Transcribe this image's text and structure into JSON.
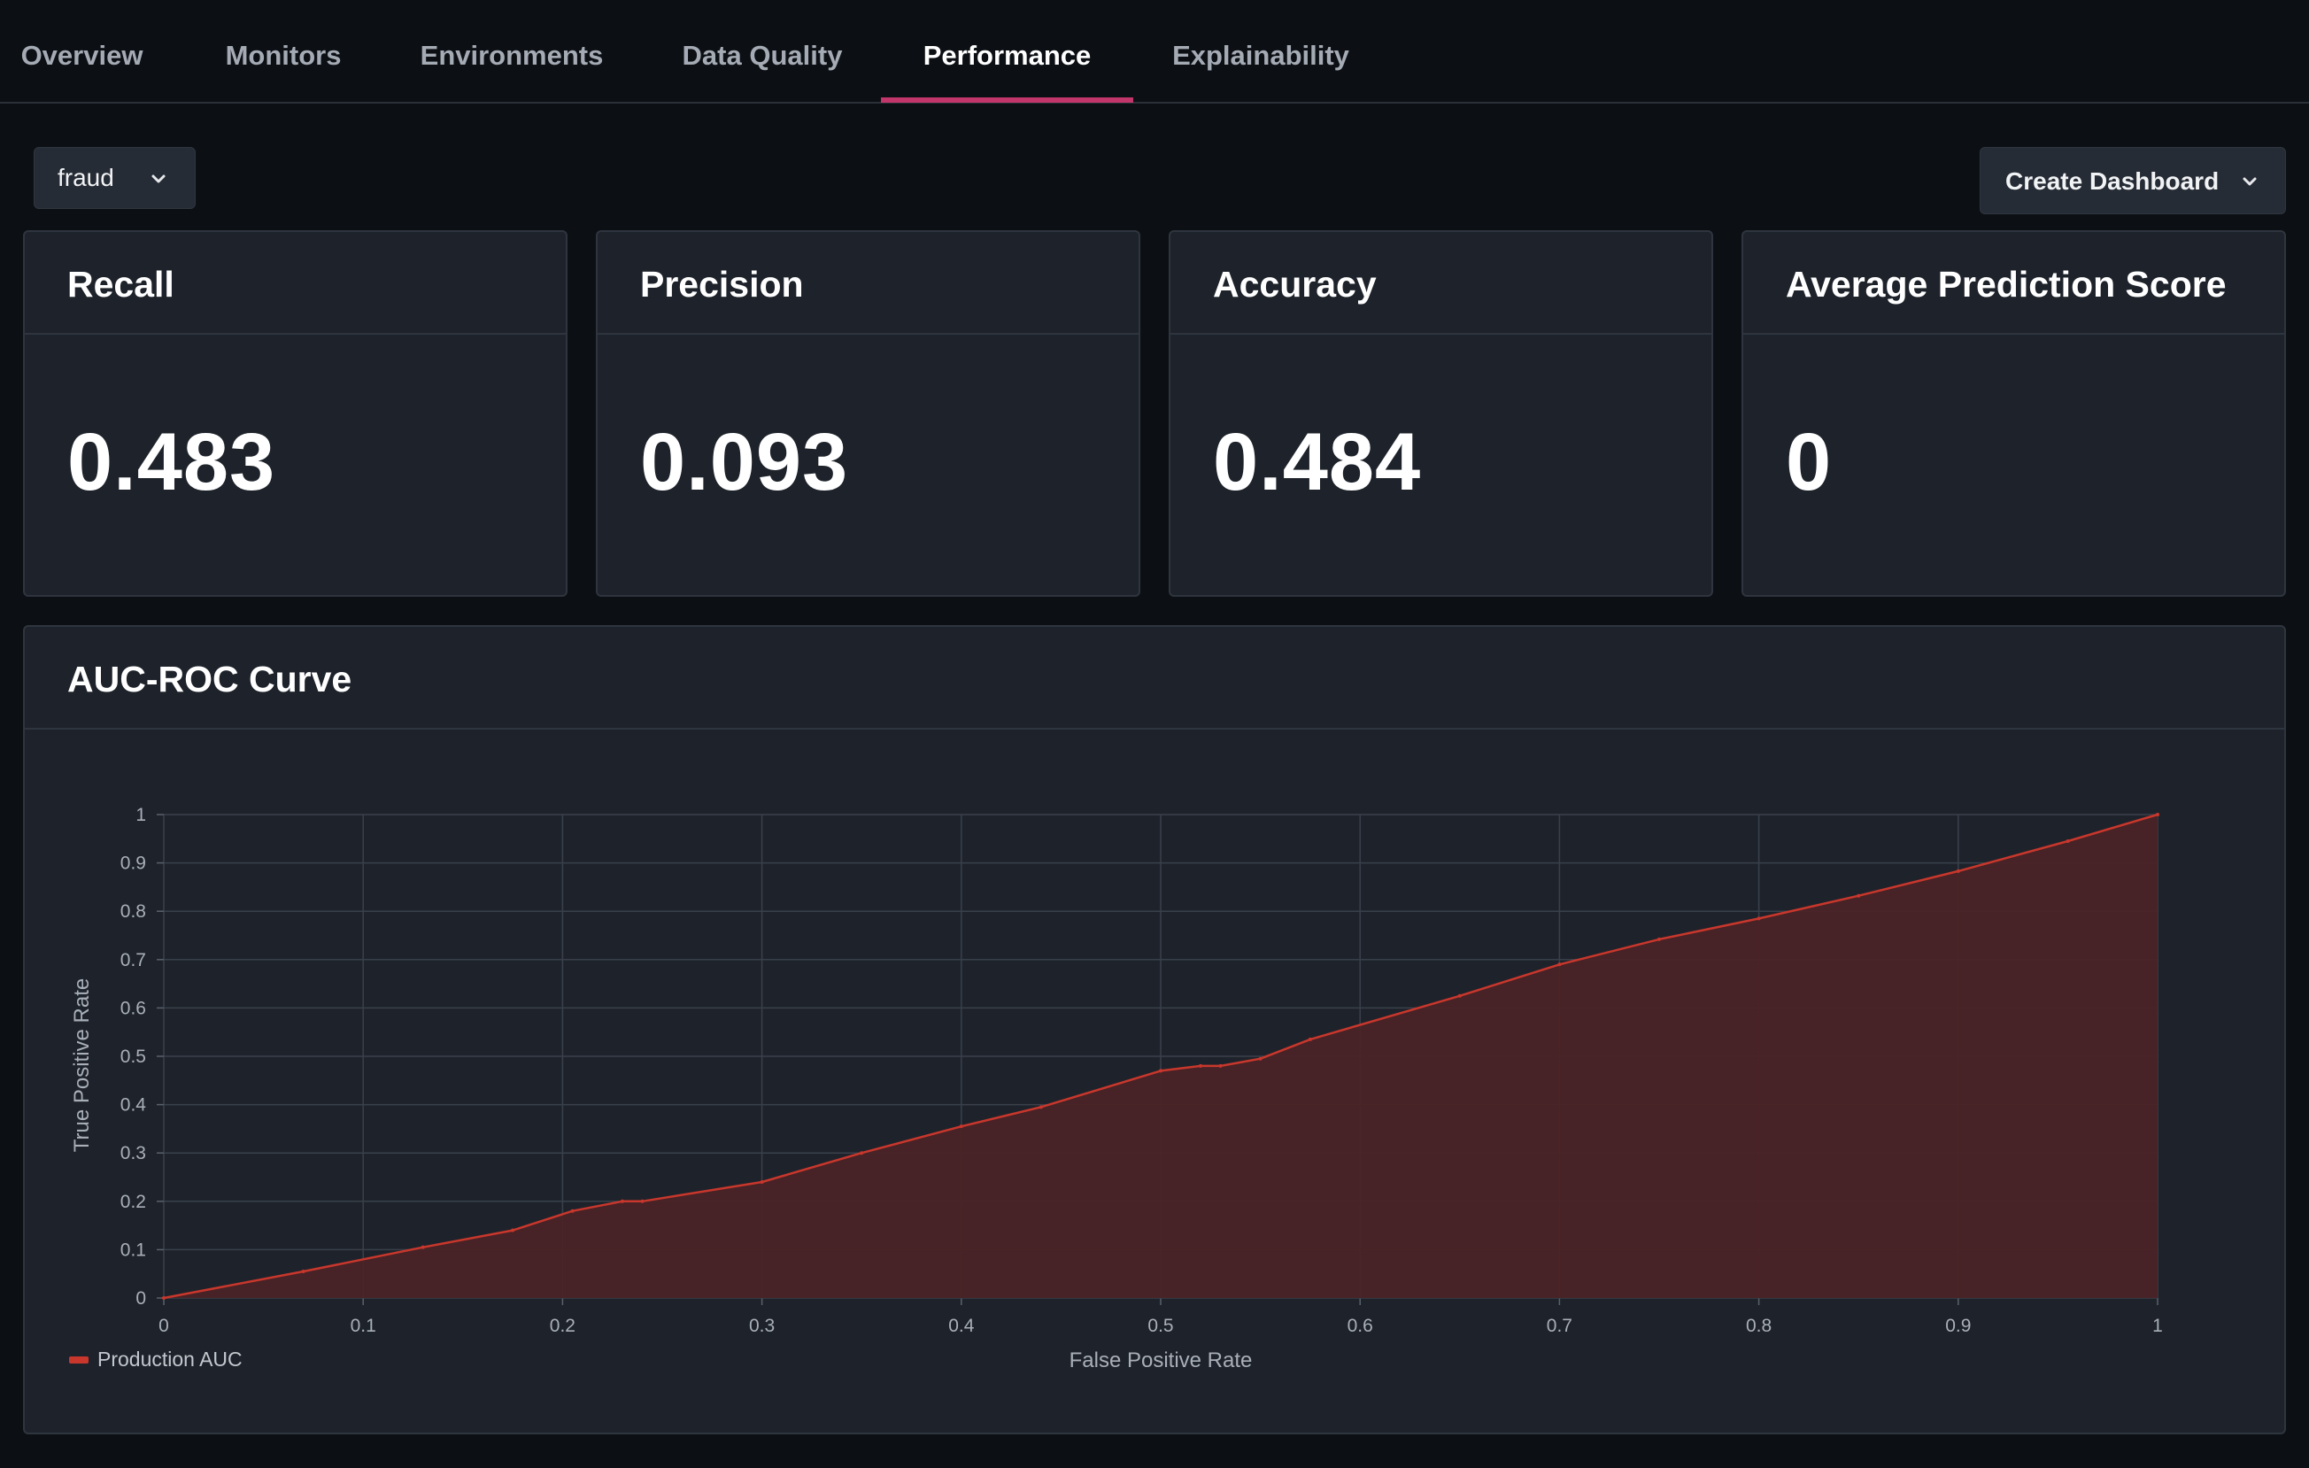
{
  "tabs": [
    {
      "label": "Overview",
      "active": false
    },
    {
      "label": "Monitors",
      "active": false
    },
    {
      "label": "Environments",
      "active": false
    },
    {
      "label": "Data Quality",
      "active": false
    },
    {
      "label": "Performance",
      "active": true
    },
    {
      "label": "Explainability",
      "active": false
    }
  ],
  "toolbar": {
    "model_select_value": "fraud",
    "create_dashboard_label": "Create Dashboard"
  },
  "metrics": [
    {
      "title": "Recall",
      "value": "0.483"
    },
    {
      "title": "Precision",
      "value": "0.093"
    },
    {
      "title": "Accuracy",
      "value": "0.484"
    },
    {
      "title": "Average Prediction Score",
      "value": "0"
    }
  ],
  "panel": {
    "title": "AUC-ROC Curve"
  },
  "colors": {
    "accent_tab": "#c2366b",
    "series_line": "#c9372c",
    "series_fill": "#4a2326"
  },
  "chart_data": {
    "type": "area",
    "xlabel": "False Positive Rate",
    "ylabel": "True Positive Rate",
    "xlim": [
      0,
      1
    ],
    "ylim": [
      0,
      1
    ],
    "x_ticks": [
      "0",
      "0.1",
      "0.2",
      "0.3",
      "0.4",
      "0.5",
      "0.6",
      "0.7",
      "0.8",
      "0.9",
      "1"
    ],
    "y_ticks": [
      "0",
      "0.1",
      "0.2",
      "0.3",
      "0.4",
      "0.5",
      "0.6",
      "0.7",
      "0.8",
      "0.9",
      "1"
    ],
    "grid": true,
    "legend_position": "bottom-left",
    "series": [
      {
        "name": "Production AUC",
        "x": [
          0,
          0.07,
          0.13,
          0.175,
          0.205,
          0.23,
          0.24,
          0.3,
          0.35,
          0.4,
          0.44,
          0.5,
          0.52,
          0.53,
          0.55,
          0.575,
          0.65,
          0.7,
          0.75,
          0.8,
          0.85,
          0.9,
          0.955,
          1
        ],
        "y": [
          0,
          0.055,
          0.105,
          0.14,
          0.18,
          0.2,
          0.2,
          0.24,
          0.3,
          0.355,
          0.395,
          0.47,
          0.48,
          0.48,
          0.495,
          0.535,
          0.625,
          0.69,
          0.742,
          0.785,
          0.832,
          0.883,
          0.945,
          1
        ]
      }
    ]
  }
}
